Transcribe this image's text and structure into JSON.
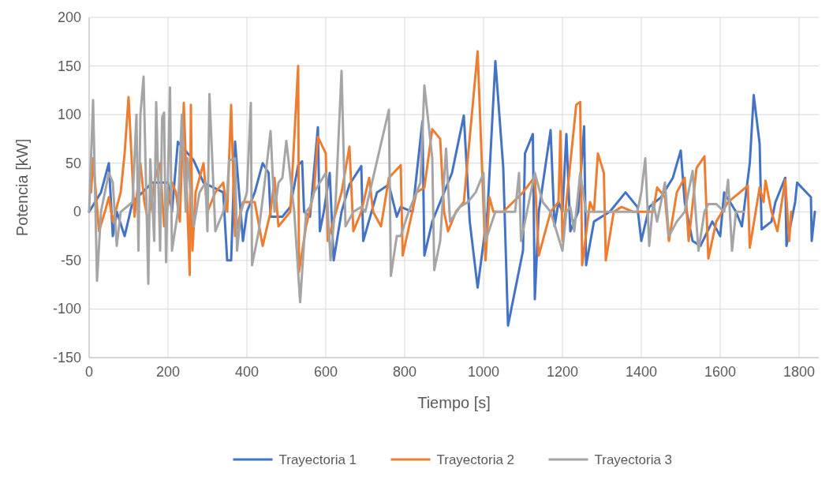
{
  "chart_data": {
    "type": "line",
    "xlabel": "Tiempo [s]",
    "ylabel": "Potencia [kW]",
    "xlim": [
      0,
      1850
    ],
    "xticks": [
      0,
      200,
      400,
      600,
      800,
      1000,
      1200,
      1400,
      1600,
      1800
    ],
    "ylim": [
      -150,
      200
    ],
    "yticks": [
      -150,
      -100,
      -50,
      0,
      50,
      100,
      150,
      200
    ],
    "grid": true,
    "legend": "bottom",
    "marker": "none",
    "line_style": "solid",
    "series": [
      {
        "name": "Trayectoria 1",
        "color": "#4472c4",
        "x": [
          0,
          30,
          50,
          60,
          70,
          90,
          110,
          160,
          200,
          210,
          225,
          265,
          290,
          340,
          350,
          360,
          370,
          390,
          400,
          420,
          440,
          455,
          460,
          490,
          510,
          530,
          540,
          545,
          560,
          580,
          585,
          595,
          610,
          620,
          640,
          660,
          690,
          695,
          730,
          760,
          780,
          790,
          820,
          845,
          850,
          870,
          880,
          920,
          950,
          965,
          985,
          1010,
          1030,
          1050,
          1062,
          1100,
          1105,
          1125,
          1130,
          1140,
          1170,
          1180,
          1190,
          1200,
          1210,
          1220,
          1240,
          1255,
          1260,
          1280,
          1320,
          1340,
          1360,
          1390,
          1400,
          1420,
          1450,
          1480,
          1500,
          1510,
          1530,
          1550,
          1580,
          1600,
          1610,
          1640,
          1655,
          1675,
          1685,
          1700,
          1705,
          1730,
          1740,
          1765,
          1768,
          1790,
          1795,
          1830,
          1832,
          1840
        ],
        "values": [
          0,
          20,
          50,
          -25,
          0,
          -25,
          10,
          30,
          30,
          0,
          72,
          53,
          30,
          20,
          -50,
          -50,
          72,
          -30,
          0,
          20,
          50,
          40,
          -5,
          -5,
          5,
          48,
          52,
          0,
          -5,
          87,
          -20,
          0,
          40,
          -50,
          0,
          28,
          47,
          -30,
          20,
          28,
          -5,
          5,
          0,
          93,
          -45,
          -10,
          0,
          40,
          99,
          -10,
          -78,
          0,
          155,
          45,
          -117,
          -40,
          60,
          80,
          -90,
          0,
          84,
          -15,
          10,
          0,
          80,
          -20,
          0,
          88,
          -55,
          -10,
          0,
          10,
          20,
          5,
          -30,
          5,
          15,
          35,
          63,
          10,
          -30,
          -35,
          -10,
          -25,
          20,
          0,
          -15,
          50,
          120,
          70,
          -18,
          -10,
          10,
          35,
          -35,
          10,
          30,
          15,
          -30,
          0
        ]
      },
      {
        "name": "Trayectoria 2",
        "color": "#ed7d31",
        "x": [
          5,
          10,
          25,
          40,
          50,
          60,
          80,
          90,
          100,
          115,
          130,
          140,
          150,
          170,
          180,
          190,
          210,
          220,
          230,
          240,
          255,
          258,
          262,
          270,
          290,
          300,
          320,
          340,
          350,
          360,
          370,
          390,
          420,
          440,
          460,
          470,
          480,
          510,
          530,
          532,
          550,
          570,
          580,
          600,
          605,
          640,
          660,
          670,
          690,
          710,
          720,
          740,
          760,
          790,
          795,
          830,
          850,
          870,
          890,
          900,
          910,
          930,
          950,
          985,
          1005,
          1015,
          1025,
          1050,
          1080,
          1100,
          1130,
          1140,
          1170,
          1180,
          1190,
          1195,
          1200,
          1235,
          1245,
          1250,
          1270,
          1280,
          1290,
          1305,
          1310,
          1330,
          1350,
          1380,
          1430,
          1440,
          1460,
          1470,
          1490,
          1510,
          1520,
          1540,
          1560,
          1570,
          1590,
          1620,
          1650,
          1670,
          1675,
          1700,
          1710,
          1715,
          1730,
          1745,
          1760,
          1765,
          1775,
          1780
        ],
        "values": [
          20,
          55,
          -20,
          0,
          15,
          -10,
          20,
          60,
          118,
          -5,
          50,
          10,
          -10,
          40,
          50,
          -15,
          30,
          20,
          -10,
          112,
          -65,
          110,
          -40,
          20,
          50,
          0,
          20,
          30,
          0,
          110,
          -25,
          10,
          10,
          -35,
          0,
          35,
          -15,
          0,
          150,
          -62,
          -15,
          20,
          77,
          60,
          -30,
          20,
          67,
          -20,
          0,
          35,
          0,
          -15,
          35,
          48,
          -45,
          20,
          25,
          85,
          75,
          0,
          -20,
          0,
          10,
          165,
          -50,
          15,
          0,
          0,
          12,
          20,
          36,
          -45,
          0,
          5,
          10,
          83,
          -30,
          110,
          113,
          -55,
          10,
          0,
          60,
          40,
          -50,
          0,
          5,
          0,
          0,
          25,
          15,
          -30,
          20,
          35,
          -30,
          45,
          57,
          -48,
          -10,
          10,
          20,
          27,
          -37,
          25,
          10,
          32,
          0,
          -20,
          20,
          33,
          -30,
          0
        ]
      },
      {
        "name": "Trayectoria 3",
        "color": "#a5a5a5",
        "x": [
          0,
          10,
          20,
          30,
          50,
          60,
          70,
          80,
          110,
          120,
          125,
          130,
          138,
          150,
          155,
          165,
          170,
          180,
          185,
          190,
          195,
          205,
          210,
          225,
          235,
          245,
          250,
          265,
          280,
          295,
          300,
          305,
          320,
          340,
          350,
          355,
          370,
          375,
          385,
          400,
          410,
          413,
          430,
          445,
          460,
          470,
          480,
          490,
          500,
          520,
          535,
          550,
          560,
          570,
          600,
          612,
          625,
          640,
          650,
          670,
          690,
          700,
          740,
          760,
          765,
          780,
          790,
          810,
          840,
          850,
          870,
          875,
          890,
          905,
          915,
          940,
          960,
          980,
          1000,
          1005,
          1030,
          1080,
          1090,
          1095,
          1110,
          1130,
          1150,
          1170,
          1200,
          1210,
          1220,
          1230,
          1245,
          1260,
          1310,
          1360,
          1390,
          1400,
          1410,
          1420,
          1430,
          1440,
          1460,
          1470,
          1490,
          1510,
          1530,
          1545,
          1560,
          1570,
          1590,
          1610,
          1620,
          1630,
          1640,
          1660
        ],
        "values": [
          0,
          115,
          -71,
          0,
          40,
          30,
          -35,
          0,
          10,
          100,
          -40,
          100,
          139,
          -74,
          54,
          -30,
          113,
          -40,
          97,
          102,
          -52,
          128,
          -40,
          0,
          100,
          0,
          55,
          -15,
          20,
          30,
          -20,
          121,
          -20,
          0,
          20,
          53,
          55,
          -40,
          0,
          20,
          112,
          -55,
          -20,
          30,
          83,
          0,
          30,
          35,
          73,
          0,
          -93,
          0,
          5,
          20,
          40,
          -50,
          10,
          145,
          -15,
          0,
          5,
          0,
          70,
          105,
          -66,
          -25,
          -25,
          0,
          30,
          130,
          55,
          -60,
          -30,
          65,
          -10,
          5,
          10,
          20,
          40,
          -30,
          0,
          0,
          40,
          -30,
          0,
          40,
          10,
          0,
          -40,
          0,
          5,
          -20,
          40,
          0,
          0,
          0,
          0,
          20,
          55,
          -35,
          10,
          -10,
          30,
          -25,
          -10,
          0,
          42,
          -40,
          0,
          8,
          8,
          0,
          33,
          -40,
          0,
          0
        ]
      }
    ]
  }
}
